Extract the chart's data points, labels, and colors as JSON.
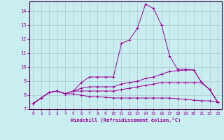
{
  "xlabel": "Windchill (Refroidissement éolien,°C)",
  "xlim": [
    -0.5,
    23.5
  ],
  "ylim": [
    7,
    14.7
  ],
  "yticks": [
    7,
    8,
    9,
    10,
    11,
    12,
    13,
    14
  ],
  "xticks": [
    0,
    1,
    2,
    3,
    4,
    5,
    6,
    7,
    8,
    9,
    10,
    11,
    12,
    13,
    14,
    15,
    16,
    17,
    18,
    19,
    20,
    21,
    22,
    23
  ],
  "bg_color": "#c8eef0",
  "line_color": "#990099",
  "border_color": "#440044",
  "grid_color": "#aabbcc",
  "lines": [
    [
      7.4,
      7.8,
      8.2,
      8.3,
      8.1,
      8.3,
      8.9,
      9.3,
      9.3,
      9.3,
      9.3,
      11.7,
      11.95,
      12.8,
      14.5,
      14.2,
      13.0,
      10.8,
      9.85,
      9.85,
      9.8,
      8.9,
      8.4,
      7.5
    ],
    [
      7.4,
      7.8,
      8.2,
      8.3,
      8.1,
      8.3,
      8.5,
      8.6,
      8.6,
      8.6,
      8.6,
      8.8,
      8.9,
      9.0,
      9.2,
      9.3,
      9.5,
      9.7,
      9.75,
      9.8,
      9.8,
      8.9,
      8.4,
      7.5
    ],
    [
      7.4,
      7.8,
      8.2,
      8.3,
      8.1,
      8.3,
      8.3,
      8.3,
      8.3,
      8.3,
      8.3,
      8.4,
      8.5,
      8.6,
      8.7,
      8.8,
      8.9,
      8.9,
      8.9,
      8.9,
      8.9,
      8.9,
      8.4,
      7.5
    ],
    [
      7.4,
      7.8,
      8.2,
      8.3,
      8.1,
      8.1,
      8.0,
      7.9,
      7.9,
      7.85,
      7.8,
      7.8,
      7.8,
      7.8,
      7.8,
      7.8,
      7.8,
      7.8,
      7.75,
      7.7,
      7.65,
      7.6,
      7.6,
      7.5
    ]
  ]
}
